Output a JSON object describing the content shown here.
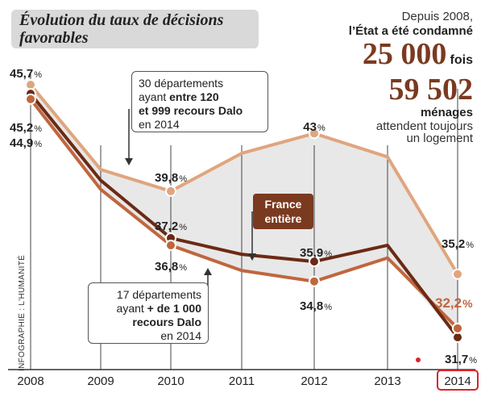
{
  "title_lines": [
    "Évolution du taux de décisions",
    "favorables"
  ],
  "stats": {
    "line1": "Depuis 2008,",
    "line2": "l’État a été condamné",
    "number1": "25 000",
    "number1_suffix": "fois",
    "number2": "59 502",
    "line3": "ménages",
    "line4": "attendent toujours",
    "line5": "un logement"
  },
  "callout_top": {
    "line1": "30 départements",
    "line2_plain": "ayant ",
    "line2_bold": "entre 120",
    "line3_bold": "et 999 recours Dalo",
    "line4": "en 2014"
  },
  "callout_bottom": {
    "line1": "17 départements",
    "line2_plain": "ayant ",
    "line2_bold": "+ de 1 000",
    "line3_bold": "recours Dalo",
    "line4": "en 2014"
  },
  "france_label": [
    "France",
    "entière"
  ],
  "credit": "INFOGRAPHIE : L'HUMANITÉ",
  "colors": {
    "light_series": "#e0a57e",
    "dark_series": "#6b2a14",
    "mid_series": "#c0663e",
    "grid": "#444444",
    "band": "#e8e8e8",
    "highlight_box": "#d9232a"
  },
  "chart_data": {
    "type": "line",
    "x": [
      "2008",
      "2009",
      "2010",
      "2011",
      "2012",
      "2013",
      "2014"
    ],
    "highlight_x": "2014",
    "value_suffix": "%",
    "series": [
      {
        "key": "light",
        "values": [
          45.7,
          41.0,
          39.8,
          41.9,
          43.0,
          41.7,
          35.2
        ],
        "labels": [
          "45,7",
          null,
          "39,8",
          null,
          "43",
          null,
          "35,2"
        ]
      },
      {
        "key": "dark",
        "values": [
          45.2,
          40.4,
          37.2,
          36.3,
          35.9,
          36.8,
          31.7
        ],
        "labels": [
          "45,2",
          null,
          "37,2",
          null,
          "35,9",
          null,
          "31,7"
        ]
      },
      {
        "key": "mid",
        "values": [
          44.9,
          39.9,
          36.8,
          35.4,
          34.8,
          36.1,
          32.2
        ],
        "labels": [
          "44,9",
          null,
          "36,8",
          null,
          "34,8",
          null,
          "32,2"
        ]
      }
    ]
  }
}
